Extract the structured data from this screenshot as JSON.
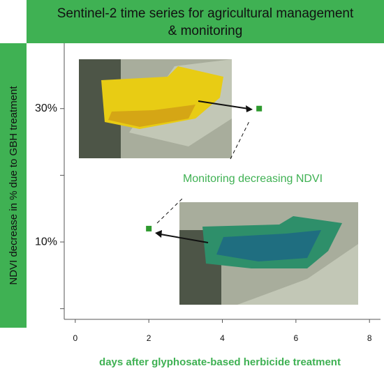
{
  "chart_data": {
    "type": "scatter",
    "title": "Sentinel-2 time series for agricultural management & monitoring",
    "y_label": "NDVI decrease in % due to GBH treatment",
    "x_label": "days after glyphosate-based herbicide treatment",
    "annotation": "Monitoring decreasing NDVI",
    "x": [
      2,
      5
    ],
    "values": [
      12,
      30
    ],
    "color": "#2e9a2e",
    "xlim": [
      -0.3,
      8.3
    ],
    "xticks": [
      0,
      2,
      4,
      6,
      8
    ],
    "ylim": [
      -1.6,
      39.8
    ],
    "yticks": [
      {
        "value": 0,
        "label": null
      },
      {
        "value": 10,
        "label": "10%"
      },
      {
        "value": 20,
        "label": null
      },
      {
        "value": 30,
        "label": "30%"
      }
    ]
  }
}
